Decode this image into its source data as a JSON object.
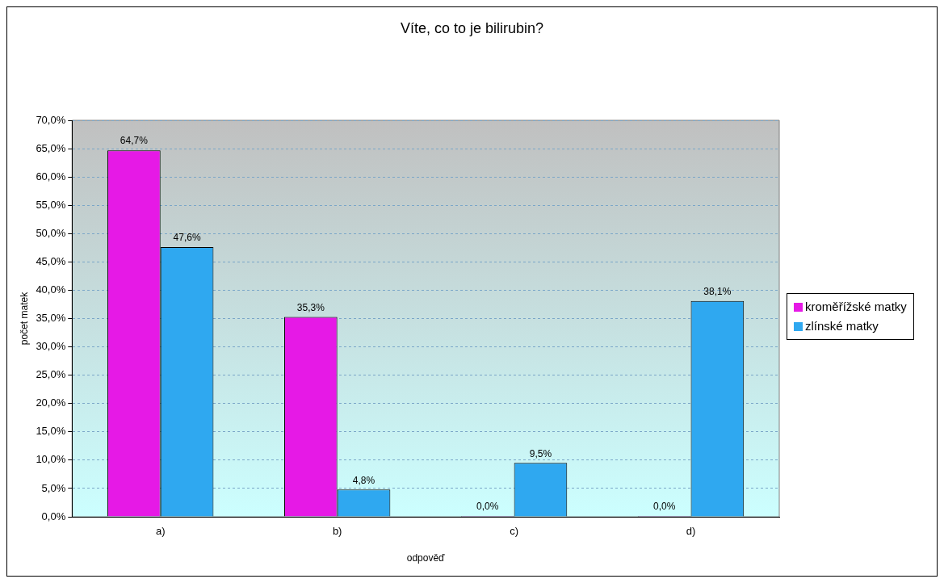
{
  "chart_data": {
    "type": "bar",
    "title": "Víte, co to je bilirubin?",
    "xlabel": "odpověď",
    "ylabel": "počet matek",
    "categories": [
      "a)",
      "b)",
      "c)",
      "d)"
    ],
    "series": [
      {
        "name": "kroměřížské matky",
        "color": "#e619e6",
        "values": [
          64.7,
          35.3,
          0,
          0
        ],
        "value_labels": [
          "64,7%",
          "35,3%",
          "0,0%",
          "0,0%"
        ]
      },
      {
        "name": "zlínské matky",
        "color": "#2fa8f0",
        "values": [
          47.6,
          4.8,
          9.5,
          38.1
        ],
        "value_labels": [
          "47,6%",
          "4,8%",
          "9,5%",
          "38,1%"
        ]
      }
    ],
    "ylim": [
      0,
      70
    ],
    "yticks": [
      {
        "value": 0,
        "label": "0,0%"
      },
      {
        "value": 5,
        "label": "5,0%"
      },
      {
        "value": 10,
        "label": "10,0%"
      },
      {
        "value": 15,
        "label": "15,0%"
      },
      {
        "value": 20,
        "label": "20,0%"
      },
      {
        "value": 25,
        "label": "25,0%"
      },
      {
        "value": 30,
        "label": "30,0%"
      },
      {
        "value": 35,
        "label": "35,0%"
      },
      {
        "value": 40,
        "label": "40,0%"
      },
      {
        "value": 45,
        "label": "45,0%"
      },
      {
        "value": 50,
        "label": "50,0%"
      },
      {
        "value": 55,
        "label": "55,0%"
      },
      {
        "value": 60,
        "label": "60,0%"
      },
      {
        "value": 65,
        "label": "65,0%"
      },
      {
        "value": 70,
        "label": "70,0%"
      }
    ],
    "grid": "y",
    "legend": "right"
  }
}
